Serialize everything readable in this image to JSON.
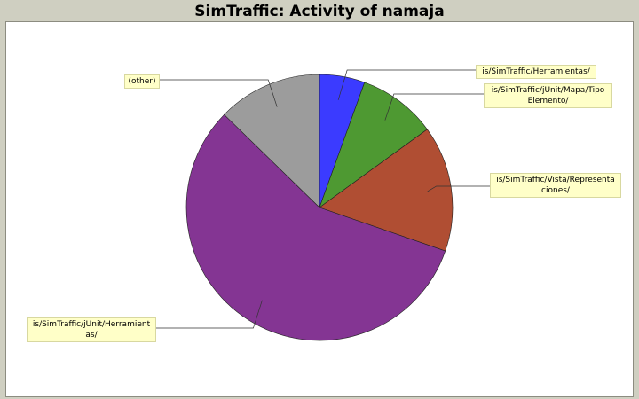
{
  "title": "SimTraffic: Activity of namaja",
  "chart_data": {
    "type": "pie",
    "title": "SimTraffic: Activity of namaja",
    "start_angle_deg": -90,
    "direction": "clockwise",
    "slices": [
      {
        "label": "is/SimTraffic/Herramientas/",
        "value": 5.5,
        "color": "#3b3bff"
      },
      {
        "label": "is/SimTraffic/jUnit/Mapa/Tipo Elemento/",
        "value": 9.5,
        "color": "#4e9932"
      },
      {
        "label": "is/SimTraffic/Vista/Representa ciones/",
        "value": 15.3,
        "color": "#b04e33"
      },
      {
        "label": "is/SimTraffic/jUnit/Herramient as/",
        "value": 57.0,
        "color": "#843593"
      },
      {
        "label": "(other)",
        "value": 12.7,
        "color": "#9c9c9c"
      }
    ]
  }
}
